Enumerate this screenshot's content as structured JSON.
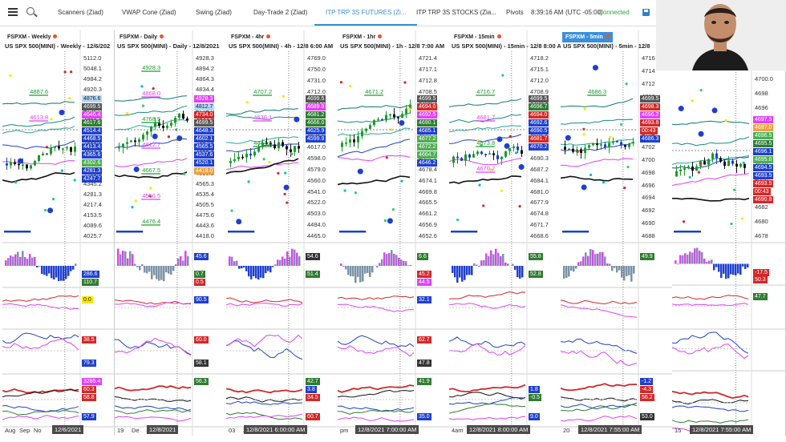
{
  "tabs": [
    {
      "label": "Scanners (Ziad)",
      "active": false
    },
    {
      "label": "VWAP Cone (Ziad)",
      "active": false
    },
    {
      "label": "Swing (Ziad)",
      "active": false
    },
    {
      "label": "Day-Trade 2 (Ziad)",
      "active": false
    },
    {
      "label": "ITP TRP 3S FUTURES (Zi...",
      "active": true
    },
    {
      "label": "ITP TRP 3S STOCKS (Zia...",
      "active": false
    }
  ],
  "header_right": {
    "pivots": "Pivots",
    "time": "8:39:16 AM",
    "timezone": "(UTC -05:00)",
    "status": "Connected"
  },
  "colors": {
    "accent": "#3a8fdc",
    "connected": "#2ea44f",
    "up": "#1a9c2a",
    "down": "#d62728",
    "blue": "#1f3fd1",
    "magenta": "#e040fb"
  },
  "panels": [
    {
      "tag": "FSPXM - Weekly",
      "sub": "US SPX 500(MINI) - Weekly - 12/6/202",
      "selected": false,
      "axis": [
        "5112.0",
        "5048.1",
        "4984.2",
        "4920.3",
        "4856.4",
        "4792.5",
        "4728.6",
        "4664.7",
        "4600.8",
        "4536.9",
        "4473.0",
        "4409.1",
        "4345.2",
        "4281.3",
        "4217.4",
        "4153.5",
        "4089.6",
        "4025.7"
      ],
      "tags": [
        {
          "t": "4876.6",
          "c": "#b5d7f5"
        },
        {
          "t": "4699.5",
          "c": "#555"
        },
        {
          "t": "4646.4",
          "c": "#e040fb"
        },
        {
          "t": "4617.6",
          "c": "#2e7d32"
        },
        {
          "t": "4514.4",
          "c": "#1f3fd1"
        },
        {
          "t": "4468.5",
          "c": "#1f3fd1"
        },
        {
          "t": "4413.4",
          "c": "#1f3fd1"
        },
        {
          "t": "4365.6",
          "c": "#1f3fd1"
        },
        {
          "t": "4302.6",
          "c": "#4caf50"
        },
        {
          "t": "4281.3",
          "c": "#1f3fd1"
        },
        {
          "t": "4247.7",
          "c": "#1f3fd1"
        },
        {
          "t": "286.6",
          "c": "#1f3fd1"
        },
        {
          "t": "110.7",
          "c": "#2e7d32"
        },
        {
          "t": "0.0",
          "c": "#ffe600"
        },
        {
          "t": "38.5",
          "c": "#d62728"
        },
        {
          "t": "79.3",
          "c": "#1f3fd1"
        },
        {
          "t": "3285.4",
          "c": "#e040fb"
        },
        {
          "t": "60.3",
          "c": "#d62728"
        },
        {
          "t": "58.8",
          "c": "#d62728"
        },
        {
          "t": "57.9",
          "c": "#1f3fd1"
        }
      ],
      "levels": [
        "4887.6",
        "4613.8"
      ],
      "footer": [
        "Aug",
        "Sep",
        "No"
      ],
      "date": "12/6/2021"
    },
    {
      "tag": "FSPXM - Daily",
      "sub": "US SPX 500(MINI) - Daily - 12/8/2021",
      "selected": false,
      "axis": [
        "4928.3",
        "4894.2",
        "4864.3",
        "4834.4",
        "4804.5",
        "4774.6",
        "4744.7",
        "4714.8",
        "4684.9",
        "4655.0",
        "4625.1",
        "4595.2",
        "4565.3",
        "4535.4",
        "4505.5",
        "4475.6",
        "4443.6",
        "4418.0"
      ],
      "tags": [
        {
          "t": "4928.3",
          "c": "#e040fb"
        },
        {
          "t": "4812.7",
          "c": "#b5d7f5"
        },
        {
          "t": "4734.0",
          "c": "#d62728"
        },
        {
          "t": "4699.5",
          "c": "#555"
        },
        {
          "t": "4648.3",
          "c": "#1f3fd1"
        },
        {
          "t": "4602.1",
          "c": "#1f3fd1"
        },
        {
          "t": "4565.5",
          "c": "#1f3fd1"
        },
        {
          "t": "4537.6",
          "c": "#1f3fd1"
        },
        {
          "t": "4520.1",
          "c": "#1f3fd1"
        },
        {
          "t": "4418.0",
          "c": "#f0a040"
        },
        {
          "t": "45.6",
          "c": "#1f3fd1"
        },
        {
          "t": "0.7",
          "c": "#2e7d32"
        },
        {
          "t": "0.5",
          "c": "#d62728"
        },
        {
          "t": "90.5",
          "c": "#1f3fd1"
        },
        {
          "t": "60.0",
          "c": "#d62728"
        },
        {
          "t": "58.1",
          "c": "#333"
        },
        {
          "t": "56.3",
          "c": "#2e7d32"
        }
      ],
      "levels": [
        "4928.3",
        "4868.0",
        "4768.5",
        "4812.7",
        "4667.5",
        "4566.5",
        "4476.4"
      ],
      "footer": [
        "19",
        "De",
        "13"
      ],
      "date": "12/8/2021"
    },
    {
      "tag": "FSPXM - 4hr",
      "sub": "US SPX 500(MINI) - 4h - 12/8 6:00 AM",
      "selected": false,
      "axis": [
        "4769.0",
        "4750.0",
        "4731.0",
        "4712.0",
        "4693.0",
        "4674.0",
        "4655.0",
        "4636.0",
        "4617.0",
        "4598.0",
        "4579.0",
        "4560.0",
        "4541.0",
        "4522.0",
        "4503.0",
        "4484.0",
        "4465.0"
      ],
      "tags": [
        {
          "t": "4699.5",
          "c": "#555"
        },
        {
          "t": "4689.9",
          "c": "#e040fb"
        },
        {
          "t": "4681.2",
          "c": "#2e7d32"
        },
        {
          "t": "4666.0",
          "c": "#2e7d32"
        },
        {
          "t": "4625.9",
          "c": "#1f3fd1"
        },
        {
          "t": "4599.9",
          "c": "#1f3fd1"
        },
        {
          "t": "42.7",
          "c": "#2e7d32"
        },
        {
          "t": "3.8",
          "c": "#1f3fd1"
        },
        {
          "t": "34.5",
          "c": "#d62728"
        },
        {
          "t": "60.7",
          "c": "#d62728"
        },
        {
          "t": "54.6",
          "c": "#333"
        },
        {
          "t": "51.4",
          "c": "#2e7d32"
        }
      ],
      "levels": [
        "4707.2",
        "4638.1",
        "4444.5"
      ],
      "footer": [
        "03",
        "29"
      ],
      "date": "12/8/2021 6:00:00 AM"
    },
    {
      "tag": "FSPXM - 1hr",
      "sub": "US SPX 500(MINI) - 1h - 12/8 7:00 AM",
      "selected": false,
      "axis": [
        "4721.4",
        "4717.1",
        "4712.8",
        "4708.5",
        "4704.2",
        "4699.9",
        "4695.6",
        "4691.3",
        "4687.0",
        "4682.7",
        "4678.4",
        "4674.1",
        "4669.8",
        "4665.5",
        "4661.2",
        "4656.9",
        "4652.6"
      ],
      "tags": [
        {
          "t": "4699.5",
          "c": "#555"
        },
        {
          "t": "4694.0",
          "c": "#d62728"
        },
        {
          "t": "4692.5",
          "c": "#e040fb"
        },
        {
          "t": "4690.1",
          "c": "#2e7d32"
        },
        {
          "t": "4685.1",
          "c": "#1f3fd1"
        },
        {
          "t": "4677.2",
          "c": "#4caf50"
        },
        {
          "t": "4672.2",
          "c": "#4caf50"
        },
        {
          "t": "4664.7",
          "c": "#4caf50"
        },
        {
          "t": "4646.2",
          "c": "#1f3fd1"
        },
        {
          "t": "35.0",
          "c": "#1f3fd1"
        },
        {
          "t": "6.6",
          "c": "#2e7d32"
        },
        {
          "t": "45.2",
          "c": "#d62728"
        },
        {
          "t": "44.5",
          "c": "#e040fb"
        },
        {
          "t": "32.1",
          "c": "#1f3fd1"
        },
        {
          "t": "62.7",
          "c": "#d62728"
        },
        {
          "t": "47.8",
          "c": "#333"
        },
        {
          "t": "41.9",
          "c": "#2e7d32"
        }
      ],
      "levels": [
        "4671.2"
      ],
      "footer": [
        "pm",
        "7"
      ],
      "date": "12/8/2021 7:00:00 AM"
    },
    {
      "tag": "FSPXM - 15min",
      "sub": "US SPX 500(MINI) - 15min - 12/8 8:00 AM",
      "selected": false,
      "axis": [
        "4718.2",
        "4715.1",
        "4712.0",
        "4708.9",
        "4705.8",
        "4702.7",
        "4699.6",
        "4696.5",
        "4693.4",
        "4690.3",
        "4687.2",
        "4684.1",
        "4681.0",
        "4677.9",
        "4674.8",
        "4671.7",
        "4668.6"
      ],
      "tags": [
        {
          "t": "4699.5",
          "c": "#555"
        },
        {
          "t": "4696.7",
          "c": "#2e7d32"
        },
        {
          "t": "4694.0",
          "c": "#d62728"
        },
        {
          "t": "4692.6",
          "c": "#1f3fd1"
        },
        {
          "t": "4690.5",
          "c": "#1f3fd1"
        },
        {
          "t": "4681.7",
          "c": "#d62728"
        },
        {
          "t": "4670.2",
          "c": "#1f3fd1"
        },
        {
          "t": "1.8",
          "c": "#1f3fd1"
        },
        {
          "t": "-0.5",
          "c": "#2e7d32"
        },
        {
          "t": "9.0",
          "c": "#1f3fd1"
        },
        {
          "t": "55.8",
          "c": "#2e7d32"
        },
        {
          "t": "52.8",
          "c": "#2e7d32"
        }
      ],
      "levels": [
        "4716.7",
        "4681.7",
        "4673.8",
        "4670.2"
      ],
      "footer": [
        "4am"
      ],
      "date": "12/8/2021 8:00:00 AM"
    },
    {
      "tag": "FSPXM - 5min",
      "sub": "US SPX 500(MINI) - 5min - 12/8",
      "selected": true,
      "axis": [
        "4716",
        "4714",
        "4712",
        "4710",
        "4708",
        "4706",
        "4704",
        "4702",
        "4700",
        "4698",
        "4696",
        "4694",
        "4692",
        "4690",
        "4688"
      ],
      "tags": [
        {
          "t": "4699.5",
          "c": "#555"
        },
        {
          "t": "4698.3",
          "c": "#d62728"
        },
        {
          "t": "4696.2",
          "c": "#e040fb"
        },
        {
          "t": "4693.8",
          "c": "#d62728"
        },
        {
          "t": "00:43",
          "c": "#d62728"
        },
        {
          "t": "4686.3",
          "c": "#1f3fd1"
        },
        {
          "t": "-1.2",
          "c": "#1f3fd1"
        },
        {
          "t": "-4.3",
          "c": "#d62728"
        },
        {
          "t": "56.2",
          "c": "#d62728"
        },
        {
          "t": "53.0",
          "c": "#333"
        },
        {
          "t": "49.9",
          "c": "#2e7d32"
        }
      ],
      "levels": [
        "4686.3"
      ],
      "footer": [
        "20"
      ],
      "date": "12/8/2021 7:55:00 AM"
    },
    {
      "tag": "",
      "sub": "",
      "selected": false,
      "axis": [
        "4700.0",
        "4698",
        "4696",
        "4694",
        "4692",
        "4690",
        "4688",
        "4686",
        "4684",
        "4682",
        "4680",
        "4678"
      ],
      "tags": [
        {
          "t": "4697.5",
          "c": "#e040fb"
        },
        {
          "t": "4697.0",
          "c": "#f0a040"
        },
        {
          "t": "4696.5",
          "c": "#4caf50"
        },
        {
          "t": "4695.5",
          "c": "#2e7d32"
        },
        {
          "t": "4696.1",
          "c": "#1f3fd1"
        },
        {
          "t": "4695.6",
          "c": "#4caf50"
        },
        {
          "t": "4694.5",
          "c": "#1f3fd1"
        },
        {
          "t": "4693.5",
          "c": "#1f3fd1"
        },
        {
          "t": "4693.5",
          "c": "#d62728"
        },
        {
          "t": "00:43",
          "c": "#d62728"
        },
        {
          "t": "4690.8",
          "c": "#d62728"
        },
        {
          "t": "-17.5",
          "c": "#d62728"
        },
        {
          "t": "50.3",
          "c": "#d62728"
        },
        {
          "t": "47.7",
          "c": "#2e7d32"
        }
      ],
      "levels": [],
      "footer": [
        "15"
      ],
      "date": "12/8/2021 7:55:00 AM"
    }
  ]
}
